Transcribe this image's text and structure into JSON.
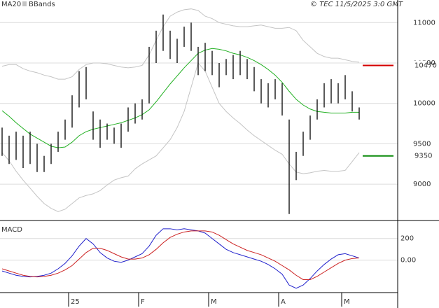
{
  "chart_data": [
    {
      "type": "hilo",
      "title": "© TEC 11/5/2025 3:0 GMT",
      "ylim": [
        8550,
        11280
      ],
      "yticks": [
        9000,
        9500,
        10000,
        10500,
        11000
      ],
      "grid": true,
      "bars": {
        "color": "#000000",
        "high": [
          9700,
          9600,
          9650,
          9600,
          9650,
          9500,
          9350,
          9500,
          9650,
          9800,
          10100,
          10400,
          10450,
          9900,
          9800,
          9750,
          9700,
          9750,
          9950,
          10000,
          10050,
          10700,
          10900,
          11100,
          10900,
          10800,
          10950,
          11000,
          10700,
          10750,
          10650,
          10500,
          10550,
          10600,
          10650,
          10550,
          10450,
          10300,
          10250,
          10300,
          10250,
          9800,
          9400,
          9650,
          9850,
          10050,
          10250,
          10300,
          10250,
          10350,
          10150,
          9950
        ],
        "low": [
          9350,
          9250,
          9300,
          9200,
          9250,
          9150,
          9150,
          9250,
          9400,
          9550,
          9700,
          9950,
          10050,
          9550,
          9450,
          9550,
          9500,
          9450,
          9650,
          9750,
          9800,
          10000,
          10500,
          10650,
          10550,
          10500,
          10700,
          10650,
          10350,
          10400,
          10350,
          10200,
          10350,
          10300,
          10350,
          10300,
          10150,
          10000,
          9950,
          10050,
          9850,
          8630,
          9050,
          9350,
          9550,
          9800,
          9950,
          10000,
          10000,
          10050,
          9900,
          9800
        ]
      },
      "ma": {
        "name": "MA20",
        "color": "#22b022",
        "values": [
          9910,
          9840,
          9760,
          9690,
          9620,
          9570,
          9520,
          9470,
          9450,
          9460,
          9520,
          9600,
          9650,
          9680,
          9700,
          9720,
          9740,
          9760,
          9790,
          9820,
          9860,
          9920,
          10020,
          10130,
          10240,
          10340,
          10440,
          10530,
          10620,
          10660,
          10680,
          10670,
          10650,
          10620,
          10600,
          10570,
          10530,
          10480,
          10420,
          10350,
          10260,
          10150,
          10050,
          9980,
          9930,
          9900,
          9890,
          9880,
          9880,
          9880,
          9890,
          9890
        ]
      },
      "bbands": {
        "name": "BBands",
        "color": "#c4c4c4",
        "upper": [
          10460,
          10480,
          10480,
          10430,
          10400,
          10380,
          10350,
          10330,
          10300,
          10300,
          10330,
          10420,
          10480,
          10500,
          10500,
          10490,
          10470,
          10450,
          10440,
          10450,
          10470,
          10600,
          10780,
          10950,
          11080,
          11130,
          11160,
          11170,
          11150,
          11080,
          11050,
          11000,
          10980,
          10960,
          10950,
          10950,
          10960,
          10970,
          10950,
          10930,
          10930,
          10940,
          10900,
          10780,
          10700,
          10620,
          10580,
          10560,
          10560,
          10540,
          10520,
          10510
        ],
        "lower": [
          9390,
          9290,
          9160,
          9050,
          8950,
          8850,
          8760,
          8700,
          8660,
          8690,
          8760,
          8830,
          8860,
          8880,
          8920,
          8990,
          9050,
          9080,
          9100,
          9190,
          9250,
          9300,
          9350,
          9450,
          9550,
          9700,
          9900,
          10200,
          10500,
          10400,
          10200,
          10000,
          9900,
          9820,
          9750,
          9670,
          9600,
          9540,
          9480,
          9420,
          9370,
          9250,
          9150,
          9130,
          9140,
          9160,
          9170,
          9160,
          9160,
          9170,
          9280,
          9390
        ]
      },
      "levels": [
        {
          "value": 10470,
          "color": "#d40000"
        },
        {
          "value": 9350,
          "color": "#0a8a0a"
        }
      ]
    },
    {
      "type": "line",
      "title": "MACD",
      "categories": [
        null,
        null,
        null,
        null,
        null,
        null,
        null,
        null,
        null,
        null,
        "25",
        null,
        null,
        null,
        null,
        null,
        null,
        null,
        null,
        null,
        "F",
        null,
        null,
        null,
        null,
        null,
        null,
        null,
        null,
        null,
        "M",
        null,
        null,
        null,
        null,
        null,
        null,
        null,
        null,
        null,
        "A",
        null,
        null,
        null,
        null,
        null,
        null,
        null,
        null,
        "M",
        null,
        null
      ],
      "ylim": [
        -300,
        360
      ],
      "yticks": [
        {
          "value": 0,
          "label": "0.00"
        },
        200
      ],
      "grid": true,
      "series": [
        {
          "color": "#2222cc",
          "values": [
            -100,
            -120,
            -140,
            -150,
            -155,
            -150,
            -140,
            -120,
            -80,
            -30,
            40,
            130,
            200,
            150,
            70,
            20,
            -10,
            -20,
            0,
            30,
            60,
            130,
            230,
            290,
            290,
            280,
            290,
            280,
            270,
            250,
            200,
            150,
            100,
            70,
            50,
            30,
            10,
            -10,
            -40,
            -80,
            -130,
            -230,
            -260,
            -230,
            -170,
            -100,
            -40,
            10,
            50,
            60,
            40,
            20
          ]
        },
        {
          "color": "#cc2222",
          "values": [
            -80,
            -100,
            -120,
            -140,
            -150,
            -155,
            -150,
            -140,
            -120,
            -90,
            -50,
            10,
            70,
            110,
            110,
            90,
            60,
            30,
            10,
            10,
            20,
            50,
            100,
            160,
            210,
            240,
            260,
            270,
            270,
            270,
            260,
            230,
            190,
            150,
            120,
            90,
            70,
            50,
            20,
            -10,
            -50,
            -90,
            -140,
            -180,
            -180,
            -150,
            -110,
            -70,
            -30,
            0,
            15,
            20
          ]
        }
      ]
    }
  ]
}
